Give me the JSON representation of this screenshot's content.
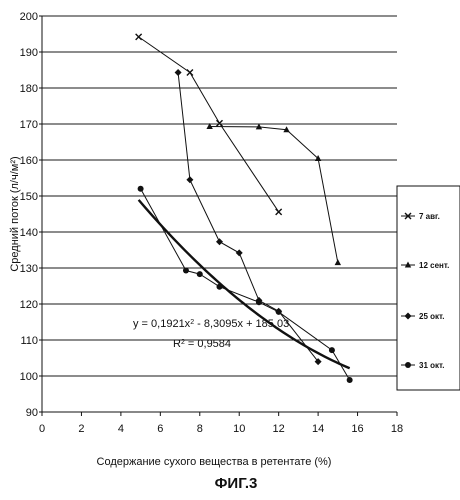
{
  "chart_data": {
    "type": "scatter",
    "title": "",
    "xlabel": "Содержание сухого вещества в ретентате (%)",
    "ylabel": "Средний поток  (л/ч/м²)",
    "xlim": [
      0,
      18
    ],
    "ylim": [
      90,
      200
    ],
    "x_ticks": [
      "0",
      "2",
      "4",
      "6",
      "8",
      "10",
      "12",
      "14",
      "16",
      "18"
    ],
    "y_ticks": [
      "90",
      "100",
      "110",
      "120",
      "130",
      "140",
      "150",
      "160",
      "170",
      "180",
      "190",
      "200"
    ],
    "grid": "horizontal",
    "legend_position": "right",
    "series": [
      {
        "name": "7 авг.",
        "marker": "cross",
        "x": [
          4.9,
          7.5,
          9.0,
          12.0
        ],
        "y": [
          194.2,
          184.3,
          170.2,
          145.6
        ]
      },
      {
        "name": "12 сент.",
        "marker": "triangle",
        "x": [
          8.5,
          11.0,
          12.4,
          14.0,
          15.0
        ],
        "y": [
          169.3,
          169.2,
          168.4,
          160.4,
          131.5
        ]
      },
      {
        "name": "25 окт.",
        "marker": "diamond",
        "x": [
          6.9,
          7.5,
          9.0,
          10.0,
          11.0,
          12.0,
          14.0
        ],
        "y": [
          184.3,
          154.5,
          137.3,
          134.2,
          121.0,
          118.0,
          104.0
        ]
      },
      {
        "name": "31 окт.",
        "marker": "circle",
        "x": [
          5.0,
          7.3,
          8.0,
          9.0,
          11.0,
          12.0,
          14.7,
          15.6
        ],
        "y": [
          152.0,
          129.3,
          128.3,
          124.8,
          120.5,
          117.8,
          107.2,
          98.9
        ]
      }
    ],
    "trendline": {
      "type": "polynomial",
      "x_range": [
        4.9,
        15.6
      ],
      "coefficients": [
        0.1921,
        -8.3095,
        185.03
      ]
    },
    "equation_text": "y = 0,1921x",
    "equation_sup": "2",
    "equation_rest": " - 8,3095x + 185,03",
    "r2_text": "R",
    "r2_sup": "2",
    "r2_rest": " = 0,9584",
    "figure_label": "ФИГ.3"
  }
}
